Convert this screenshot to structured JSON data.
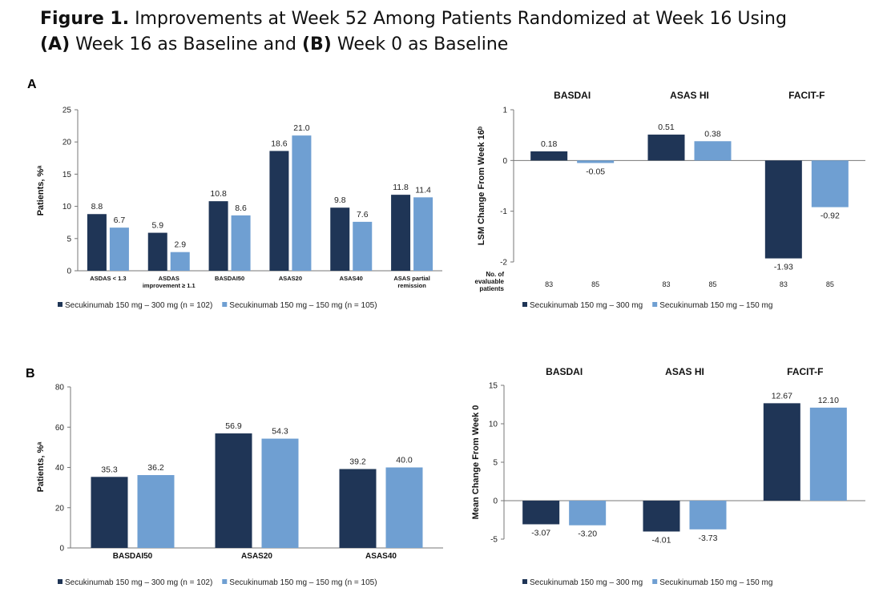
{
  "figure": {
    "title_bold_1": "Figure 1.",
    "title_text_1": " Improvements at Week 52 Among Patients Randomized at Week 16 Using",
    "title_bold_2": "(A)",
    "title_text_2": " Week 16 as Baseline and ",
    "title_bold_3": "(B)",
    "title_text_3": " Week 0 as Baseline",
    "panel_a_label": "A",
    "panel_b_label": "B"
  },
  "colors": {
    "dark": "#1f3556",
    "light": "#6f9fd2",
    "axis": "#777777"
  },
  "chart_data": [
    {
      "id": "A_left",
      "type": "bar",
      "ylabel": "Patients, %ᵃ",
      "ylim": [
        0,
        25
      ],
      "yticks": [
        0,
        5,
        10,
        15,
        20,
        25
      ],
      "categories": [
        "ASDAS < 1.3",
        "ASDAS improvement ≥ 1.1",
        "BASDAI50",
        "ASAS20",
        "ASAS40",
        "ASAS partial remission"
      ],
      "series": [
        {
          "name": "Secukinumab 150 mg – 300 mg (n = 102)",
          "values": [
            8.8,
            5.9,
            10.8,
            18.6,
            9.8,
            11.8
          ],
          "labels": [
            "8.8",
            "5.9",
            "10.8",
            "18.6",
            "9.8",
            "11.8"
          ]
        },
        {
          "name": "Secukinumab 150 mg – 150 mg (n = 105)",
          "values": [
            6.7,
            2.9,
            8.6,
            21.0,
            7.6,
            11.4
          ],
          "labels": [
            "6.7",
            "2.9",
            "8.6",
            "21.0",
            "7.6",
            "11.4"
          ]
        }
      ]
    },
    {
      "id": "A_right",
      "type": "bar",
      "ylabel": "LSM Change From Week 16ᵇ",
      "ylim": [
        -2,
        1
      ],
      "yticks": [
        -2,
        -1,
        0,
        1
      ],
      "categories": [
        "BASDAI",
        "ASAS HI",
        "FACIT-F"
      ],
      "series": [
        {
          "name": "Secukinumab 150 mg – 300 mg",
          "values": [
            0.18,
            0.51,
            -1.93
          ],
          "labels": [
            "0.18",
            "0.51",
            "-1.93"
          ]
        },
        {
          "name": "Secukinumab 150 mg – 150 mg",
          "values": [
            -0.05,
            0.38,
            -0.92
          ],
          "labels": [
            "-0.05",
            "0.38",
            "-0.92"
          ]
        }
      ],
      "n_label": [
        "No. of",
        "evaluable",
        "patients"
      ],
      "n_values": [
        "83",
        "85",
        "83",
        "85",
        "83",
        "85"
      ]
    },
    {
      "id": "B_left",
      "type": "bar",
      "ylabel": "Patients, %ᵃ",
      "ylim": [
        0,
        80
      ],
      "yticks": [
        0,
        20,
        40,
        60,
        80
      ],
      "categories": [
        "BASDAI50",
        "ASAS20",
        "ASAS40"
      ],
      "series": [
        {
          "name": "Secukinumab 150 mg – 300 mg (n = 102)",
          "values": [
            35.3,
            56.9,
            39.2
          ],
          "labels": [
            "35.3",
            "56.9",
            "39.2"
          ]
        },
        {
          "name": "Secukinumab 150 mg – 150 mg (n = 105)",
          "values": [
            36.2,
            54.3,
            40.0
          ],
          "labels": [
            "36.2",
            "54.3",
            "40.0"
          ]
        }
      ]
    },
    {
      "id": "B_right",
      "type": "bar",
      "ylabel": "Mean Change From Week 0",
      "ylim": [
        -5,
        15
      ],
      "yticks": [
        -5,
        0,
        5,
        10,
        15
      ],
      "categories": [
        "BASDAI",
        "ASAS HI",
        "FACIT-F"
      ],
      "series": [
        {
          "name": "Secukinumab 150 mg – 300 mg",
          "values": [
            -3.07,
            -4.01,
            12.67
          ],
          "labels": [
            "-3.07",
            "-4.01",
            "12.67"
          ]
        },
        {
          "name": "Secukinumab 150 mg – 150 mg",
          "values": [
            -3.2,
            -3.73,
            12.1
          ],
          "labels": [
            "-3.20",
            "-3.73",
            "12.10"
          ]
        }
      ]
    }
  ]
}
